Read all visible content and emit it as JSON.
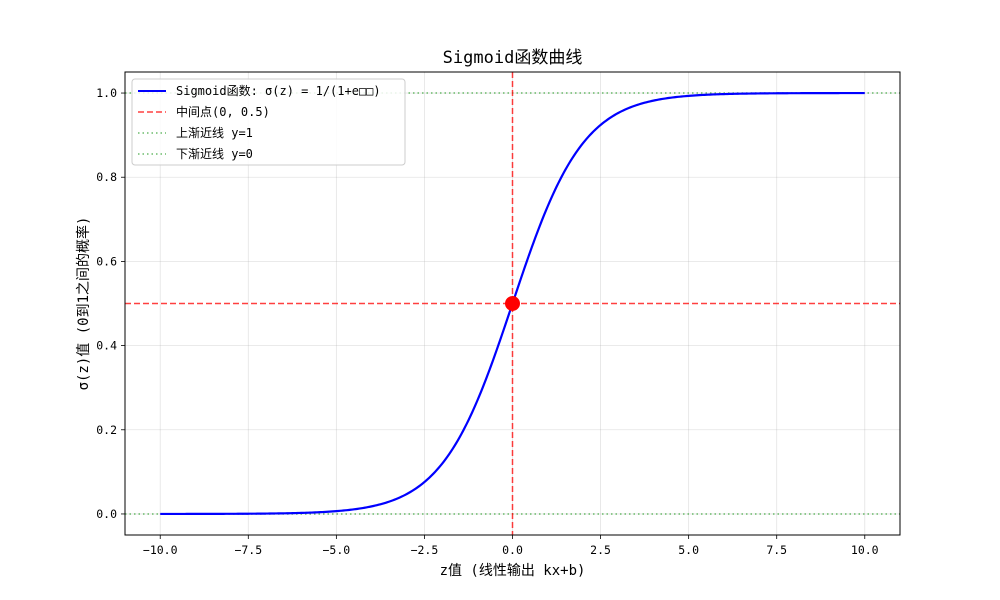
{
  "chart_data": {
    "type": "line",
    "title": "Sigmoid函数曲线",
    "xlabel": "z值 (线性输出 kx+b)",
    "ylabel": "σ(z)值 (0到1之间的概率)",
    "xlim": [
      -11,
      11
    ],
    "ylim": [
      -0.05,
      1.05
    ],
    "grid": true,
    "legend_position": "top-left",
    "x_ticks": [
      -10,
      -7.5,
      -5,
      -2.5,
      0,
      2.5,
      5,
      7.5,
      10
    ],
    "x_tick_labels": [
      "−10.0",
      "−7.5",
      "−5.0",
      "−2.5",
      "0.0",
      "2.5",
      "5.0",
      "7.5",
      "10.0"
    ],
    "y_ticks": [
      0,
      0.2,
      0.4,
      0.6,
      0.8,
      1.0
    ],
    "y_tick_labels": [
      "0.0",
      "0.2",
      "0.4",
      "0.6",
      "0.8",
      "1.0"
    ],
    "series": [
      {
        "name": "Sigmoid函数: σ(z) = 1/(1+e□□)",
        "kind": "curve",
        "function": "sigmoid",
        "x_range": [
          -10,
          10
        ],
        "color": "#0000ff",
        "style": "solid",
        "sample_points": [
          {
            "x": -10,
            "y": 4.54e-05
          },
          {
            "x": -7.5,
            "y": 0.000553
          },
          {
            "x": -5,
            "y": 0.00669
          },
          {
            "x": -2.5,
            "y": 0.0759
          },
          {
            "x": 0,
            "y": 0.5
          },
          {
            "x": 2.5,
            "y": 0.924
          },
          {
            "x": 5,
            "y": 0.9933
          },
          {
            "x": 7.5,
            "y": 0.99945
          },
          {
            "x": 10,
            "y": 0.99995
          }
        ]
      },
      {
        "name": "中间点(0, 0.5)",
        "kind": "crosshair",
        "x": 0,
        "y": 0.5,
        "color": "#ff0000",
        "style": "dashed",
        "marker": "circle"
      },
      {
        "name": "上渐近线 y=1",
        "kind": "hline",
        "y": 1,
        "color": "#2ca02c",
        "style": "dotted"
      },
      {
        "name": "下渐近线 y=0",
        "kind": "hline",
        "y": 0,
        "color": "#2ca02c",
        "style": "dotted"
      }
    ]
  }
}
